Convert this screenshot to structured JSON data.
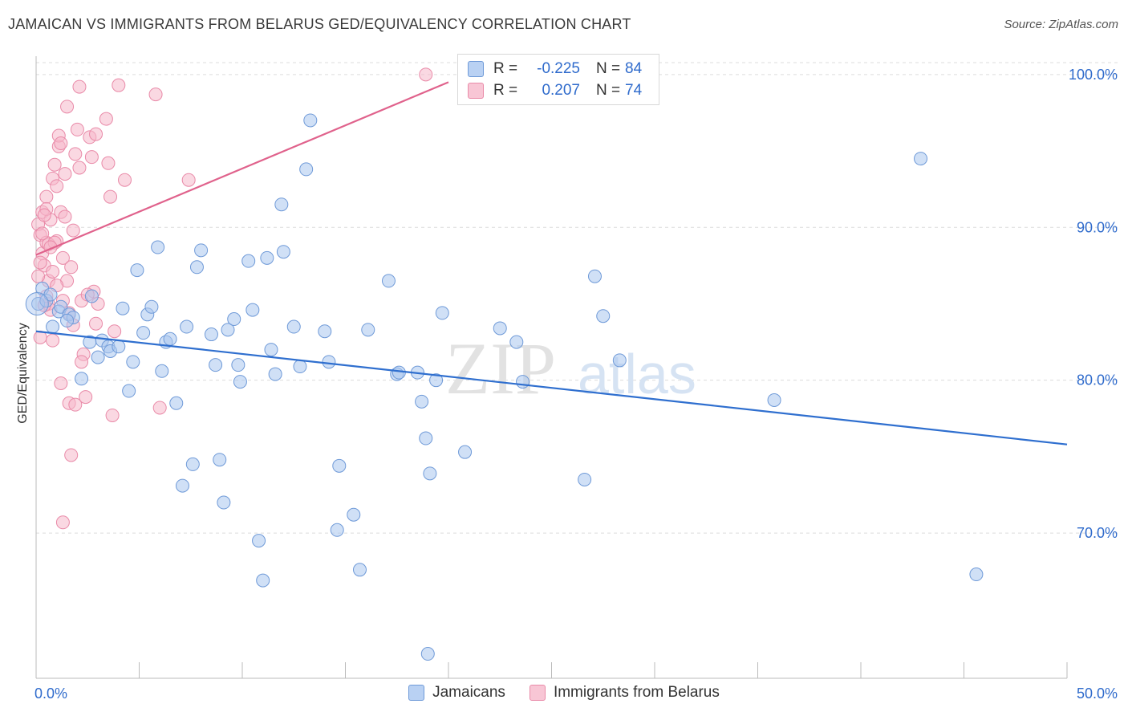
{
  "title": "JAMAICAN VS IMMIGRANTS FROM BELARUS GED/EQUIVALENCY CORRELATION CHART",
  "source": "Source: ZipAtlas.com",
  "watermark": {
    "zip": "ZIP",
    "atlas": "atlas"
  },
  "legend": {
    "series1": {
      "r_label": "R =",
      "r_value": "-0.225",
      "n_label": "N =",
      "n_value": "84"
    },
    "series2": {
      "r_label": "R =",
      "r_value": "0.207",
      "n_label": "N =",
      "n_value": "74"
    }
  },
  "bottom_legend": {
    "series1": "Jamaicans",
    "series2": "Immigrants from Belarus"
  },
  "colors": {
    "blue_fill": "#a9c6ef",
    "blue_stroke": "#6f9ad8",
    "blue_line": "#2f6fcf",
    "pink_fill": "#f6b8cb",
    "pink_stroke": "#e98aa8",
    "pink_line": "#e0628c",
    "axis_label": "#2f6bcc",
    "grid": "#dcdcdc"
  },
  "chart_data": {
    "type": "scatter",
    "title": "JAMAICAN VS IMMIGRANTS FROM BELARUS GED/EQUIVALENCY CORRELATION CHART",
    "xlabel": "",
    "ylabel": "GED/Equivalency",
    "xlim": [
      0,
      50
    ],
    "ylim": [
      60.5,
      101.2
    ],
    "x_tick_labels": [
      "0.0%",
      "50.0%"
    ],
    "y_ticks": [
      70,
      80,
      90,
      100
    ],
    "y_tick_labels": [
      "70.0%",
      "80.0%",
      "90.0%",
      "100.0%"
    ],
    "series": [
      {
        "name": "Jamaicans",
        "r": -0.225,
        "n": 84,
        "trend": {
          "x": [
            0,
            50
          ],
          "y": [
            83.2,
            75.8
          ]
        },
        "points": [
          [
            0.1,
            85.0
          ],
          [
            0.3,
            86.0
          ],
          [
            0.5,
            85.2
          ],
          [
            0.7,
            85.6
          ],
          [
            1.1,
            84.5
          ],
          [
            1.2,
            84.8
          ],
          [
            1.6,
            84.3
          ],
          [
            1.8,
            84.1
          ],
          [
            2.7,
            85.5
          ],
          [
            2.6,
            82.5
          ],
          [
            3.2,
            82.6
          ],
          [
            3.5,
            82.2
          ],
          [
            3.6,
            81.9
          ],
          [
            4.0,
            82.2
          ],
          [
            4.2,
            84.7
          ],
          [
            4.5,
            79.3
          ],
          [
            4.7,
            81.2
          ],
          [
            4.9,
            87.2
          ],
          [
            5.2,
            83.1
          ],
          [
            5.4,
            84.3
          ],
          [
            5.6,
            84.8
          ],
          [
            5.9,
            88.7
          ],
          [
            6.1,
            80.6
          ],
          [
            6.3,
            82.5
          ],
          [
            6.5,
            82.7
          ],
          [
            6.8,
            78.5
          ],
          [
            7.1,
            73.1
          ],
          [
            7.3,
            83.5
          ],
          [
            7.6,
            74.5
          ],
          [
            7.8,
            87.4
          ],
          [
            8.0,
            88.5
          ],
          [
            8.5,
            83.0
          ],
          [
            8.7,
            81.0
          ],
          [
            8.9,
            74.8
          ],
          [
            9.1,
            72.0
          ],
          [
            9.3,
            83.3
          ],
          [
            9.6,
            84.0
          ],
          [
            9.8,
            81.0
          ],
          [
            9.9,
            79.9
          ],
          [
            10.3,
            87.8
          ],
          [
            10.5,
            84.6
          ],
          [
            10.8,
            69.5
          ],
          [
            11.0,
            66.9
          ],
          [
            11.2,
            88.0
          ],
          [
            11.4,
            82.0
          ],
          [
            11.6,
            80.4
          ],
          [
            11.9,
            91.5
          ],
          [
            12.0,
            88.4
          ],
          [
            12.5,
            83.5
          ],
          [
            12.8,
            80.9
          ],
          [
            13.1,
            93.8
          ],
          [
            13.3,
            97.0
          ],
          [
            14.0,
            83.2
          ],
          [
            14.2,
            81.2
          ],
          [
            14.6,
            70.2
          ],
          [
            14.7,
            74.4
          ],
          [
            15.4,
            71.2
          ],
          [
            15.7,
            67.6
          ],
          [
            16.1,
            83.3
          ],
          [
            17.1,
            86.5
          ],
          [
            17.5,
            80.4
          ],
          [
            17.6,
            80.5
          ],
          [
            18.5,
            80.5
          ],
          [
            18.7,
            78.6
          ],
          [
            18.9,
            76.2
          ],
          [
            19.1,
            73.9
          ],
          [
            19.0,
            62.1
          ],
          [
            19.4,
            80.0
          ],
          [
            19.7,
            84.4
          ],
          [
            20.8,
            75.3
          ],
          [
            22.5,
            83.4
          ],
          [
            23.3,
            82.5
          ],
          [
            23.6,
            79.9
          ],
          [
            26.6,
            73.5
          ],
          [
            27.1,
            86.8
          ],
          [
            27.5,
            84.2
          ],
          [
            28.3,
            81.3
          ],
          [
            35.8,
            78.7
          ],
          [
            42.9,
            94.5
          ],
          [
            45.6,
            67.3
          ],
          [
            2.2,
            80.1
          ],
          [
            1.5,
            83.9
          ],
          [
            0.8,
            83.5
          ],
          [
            3.0,
            81.5
          ]
        ]
      },
      {
        "name": "Immigrants from Belarus",
        "r": 0.207,
        "n": 74,
        "trend": {
          "x": [
            0,
            20
          ],
          "y": [
            88.2,
            99.5
          ]
        },
        "points": [
          [
            0.1,
            90.2
          ],
          [
            0.2,
            89.5
          ],
          [
            0.3,
            91.0
          ],
          [
            0.3,
            88.3
          ],
          [
            0.4,
            87.5
          ],
          [
            0.5,
            92.0
          ],
          [
            0.5,
            89.0
          ],
          [
            0.6,
            86.5
          ],
          [
            0.6,
            85.0
          ],
          [
            0.7,
            84.6
          ],
          [
            0.7,
            90.5
          ],
          [
            0.8,
            93.2
          ],
          [
            0.8,
            87.1
          ],
          [
            0.9,
            94.1
          ],
          [
            1.0,
            92.7
          ],
          [
            1.0,
            89.1
          ],
          [
            1.1,
            95.3
          ],
          [
            1.1,
            96.0
          ],
          [
            1.2,
            91.0
          ],
          [
            1.3,
            88.0
          ],
          [
            1.3,
            85.2
          ],
          [
            1.4,
            93.5
          ],
          [
            1.5,
            97.9
          ],
          [
            1.5,
            86.5
          ],
          [
            1.6,
            84.4
          ],
          [
            1.7,
            87.4
          ],
          [
            1.8,
            89.8
          ],
          [
            1.9,
            94.8
          ],
          [
            2.0,
            96.4
          ],
          [
            2.1,
            99.2
          ],
          [
            2.1,
            93.9
          ],
          [
            2.2,
            85.2
          ],
          [
            2.3,
            81.7
          ],
          [
            2.4,
            78.9
          ],
          [
            2.6,
            95.9
          ],
          [
            2.7,
            94.6
          ],
          [
            2.8,
            85.8
          ],
          [
            2.9,
            83.7
          ],
          [
            3.0,
            85.0
          ],
          [
            3.4,
            97.1
          ],
          [
            3.5,
            94.2
          ],
          [
            3.6,
            92.0
          ],
          [
            3.7,
            77.7
          ],
          [
            3.8,
            83.2
          ],
          [
            4.0,
            99.3
          ],
          [
            4.3,
            93.1
          ],
          [
            5.8,
            98.7
          ],
          [
            6.0,
            78.2
          ],
          [
            7.4,
            93.1
          ],
          [
            0.2,
            82.8
          ],
          [
            0.8,
            82.6
          ],
          [
            1.2,
            79.8
          ],
          [
            1.6,
            78.5
          ],
          [
            1.7,
            75.1
          ],
          [
            1.9,
            78.4
          ],
          [
            1.3,
            70.7
          ],
          [
            2.2,
            81.2
          ],
          [
            0.4,
            84.9
          ],
          [
            0.6,
            88.9
          ],
          [
            0.9,
            89.0
          ],
          [
            1.0,
            86.2
          ],
          [
            0.5,
            85.5
          ],
          [
            0.3,
            89.6
          ],
          [
            0.2,
            87.7
          ],
          [
            1.4,
            90.7
          ],
          [
            2.5,
            85.6
          ],
          [
            18.9,
            100.0
          ],
          [
            0.5,
            91.2
          ],
          [
            0.4,
            90.8
          ],
          [
            1.8,
            83.6
          ],
          [
            2.9,
            96.1
          ],
          [
            1.2,
            95.5
          ],
          [
            0.7,
            88.7
          ],
          [
            0.1,
            86.8
          ]
        ]
      }
    ]
  }
}
